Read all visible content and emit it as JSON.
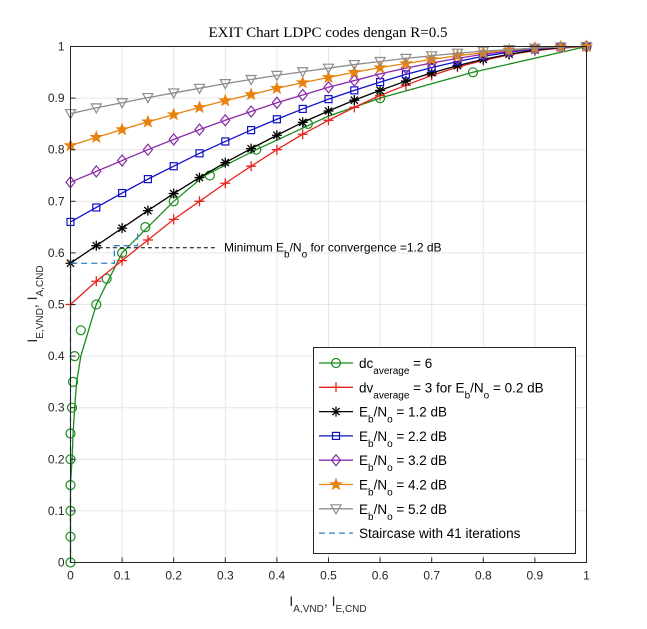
{
  "chart_data": {
    "type": "line",
    "title": "EXIT Chart LDPC codes dengan R=0.5",
    "xlabel_main": "I",
    "xlabel_sub": "A,VND",
    "xlabel_sep": ", I",
    "xlabel_sub2": "E,CND",
    "ylabel_main": "I",
    "ylabel_sub": "E,VND",
    "ylabel_sep": ", I",
    "ylabel_sub2": "A,CND",
    "xlim": [
      0,
      1
    ],
    "ylim": [
      0,
      1
    ],
    "xticks": [
      "0",
      "0.1",
      "0.2",
      "0.3",
      "0.4",
      "0.5",
      "0.6",
      "0.7",
      "0.8",
      "0.9",
      "1"
    ],
    "yticks": [
      "0",
      "0.1",
      "0.2",
      "0.3",
      "0.4",
      "0.5",
      "0.6",
      "0.7",
      "0.8",
      "0.9",
      "1"
    ],
    "grid": true,
    "legend_position": "bottom-right",
    "annotation": {
      "text_pre": "Minimum E",
      "text_sub1": "b",
      "text_mid": "/N",
      "text_sub2": "o",
      "text_post": " for convergence =1.2 dB",
      "point": [
        0.055,
        0.61
      ]
    },
    "series": [
      {
        "name": "dc",
        "name_sub": "average",
        "name_post": " = 6",
        "color": "#1a8c1a",
        "marker": "circle",
        "points": [
          [
            1.0,
            0.0
          ],
          [
            0.9,
            0.0
          ],
          [
            0.85,
            0.0
          ],
          [
            0.8,
            0.003
          ],
          [
            0.75,
            0.005
          ],
          [
            0.7,
            0.008
          ],
          [
            0.65,
            0.012
          ],
          [
            0.6,
            0.02
          ],
          [
            0.55,
            0.035
          ],
          [
            0.5,
            0.05
          ],
          [
            0.45,
            0.075
          ],
          [
            0.4,
            0.1
          ],
          [
            0.35,
            0.125
          ],
          [
            0.3,
            0.15
          ],
          [
            0.25,
            0.2
          ],
          [
            0.2,
            0.25
          ],
          [
            0.15,
            0.3
          ],
          [
            0.1,
            0.35
          ],
          [
            0.05,
            0.46
          ],
          [
            0.0,
            0.78
          ]
        ],
        "yx": true,
        "ext_points": [
          [
            0.36,
            0.8
          ],
          [
            0.5,
            0.865
          ],
          [
            0.6,
            0.9
          ],
          [
            0.78,
            0.95
          ],
          [
            1.0,
            1.0
          ]
        ],
        "markers_y": [
          0.0,
          0.05,
          0.1,
          0.15,
          0.2,
          0.25,
          0.3,
          0.35,
          0.4,
          0.45,
          0.5,
          0.55,
          0.6,
          0.65,
          0.7,
          0.75,
          0.8,
          0.85,
          0.9,
          0.95,
          1.0
        ]
      },
      {
        "name": "dv",
        "name_sub": "average",
        "name_post": " = 3 for E",
        "name_sub2": "b",
        "name_post2": "/N",
        "name_sub3": "o",
        "name_post3": " = 0.2 dB",
        "color": "#e8231e",
        "marker": "plus",
        "x": [
          0,
          0.05,
          0.1,
          0.15,
          0.2,
          0.25,
          0.3,
          0.35,
          0.4,
          0.45,
          0.5,
          0.55,
          0.6,
          0.65,
          0.7,
          0.75,
          0.8,
          0.85,
          0.9,
          0.95,
          1.0
        ],
        "y": [
          0.5,
          0.545,
          0.585,
          0.625,
          0.665,
          0.7,
          0.735,
          0.768,
          0.8,
          0.83,
          0.857,
          0.882,
          0.905,
          0.925,
          0.944,
          0.96,
          0.973,
          0.984,
          0.992,
          0.997,
          1.0
        ]
      },
      {
        "name": "E",
        "name_sub": "b",
        "name_post": "/N",
        "name_sub2": "o",
        "name_post2": " = 1.2 dB",
        "color": "#000000",
        "marker": "star",
        "x": [
          0,
          0.05,
          0.1,
          0.15,
          0.2,
          0.25,
          0.3,
          0.35,
          0.4,
          0.45,
          0.5,
          0.55,
          0.6,
          0.65,
          0.7,
          0.75,
          0.8,
          0.85,
          0.9,
          0.95,
          1.0
        ],
        "y": [
          0.58,
          0.614,
          0.648,
          0.682,
          0.715,
          0.746,
          0.775,
          0.802,
          0.828,
          0.853,
          0.875,
          0.896,
          0.915,
          0.933,
          0.949,
          0.963,
          0.975,
          0.985,
          0.993,
          0.998,
          1.0
        ]
      },
      {
        "name": "E",
        "name_sub": "b",
        "name_post": "/N",
        "name_sub2": "o",
        "name_post2": " = 2.2 dB",
        "color": "#1010c8",
        "marker": "square",
        "x": [
          0,
          0.05,
          0.1,
          0.15,
          0.2,
          0.25,
          0.3,
          0.35,
          0.4,
          0.45,
          0.5,
          0.55,
          0.6,
          0.65,
          0.7,
          0.75,
          0.8,
          0.85,
          0.9,
          0.95,
          1.0
        ],
        "y": [
          0.66,
          0.688,
          0.716,
          0.743,
          0.768,
          0.793,
          0.816,
          0.838,
          0.859,
          0.879,
          0.898,
          0.915,
          0.931,
          0.946,
          0.959,
          0.971,
          0.981,
          0.989,
          0.995,
          0.999,
          1.0
        ]
      },
      {
        "name": "E",
        "name_sub": "b",
        "name_post": "/N",
        "name_sub2": "o",
        "name_post2": " = 3.2 dB",
        "color": "#8a2aa8",
        "marker": "diamond",
        "x": [
          0,
          0.05,
          0.1,
          0.15,
          0.2,
          0.25,
          0.3,
          0.35,
          0.4,
          0.45,
          0.5,
          0.55,
          0.6,
          0.65,
          0.7,
          0.75,
          0.8,
          0.85,
          0.9,
          0.95,
          1.0
        ],
        "y": [
          0.737,
          0.758,
          0.779,
          0.8,
          0.82,
          0.839,
          0.857,
          0.874,
          0.891,
          0.906,
          0.921,
          0.934,
          0.947,
          0.958,
          0.968,
          0.977,
          0.985,
          0.991,
          0.996,
          0.999,
          1.0
        ]
      },
      {
        "name": "E",
        "name_sub": "b",
        "name_post": "/N",
        "name_sub2": "o",
        "name_post2": " = 4.2 dB",
        "color": "#e8820e",
        "marker": "pentagram",
        "x": [
          0,
          0.05,
          0.1,
          0.15,
          0.2,
          0.25,
          0.3,
          0.35,
          0.4,
          0.45,
          0.5,
          0.55,
          0.6,
          0.65,
          0.7,
          0.75,
          0.8,
          0.85,
          0.9,
          0.95,
          1.0
        ],
        "y": [
          0.808,
          0.824,
          0.839,
          0.854,
          0.868,
          0.882,
          0.895,
          0.907,
          0.919,
          0.93,
          0.94,
          0.95,
          0.959,
          0.967,
          0.975,
          0.982,
          0.988,
          0.993,
          0.997,
          0.999,
          1.0
        ]
      },
      {
        "name": "E",
        "name_sub": "b",
        "name_post": "/N",
        "name_sub2": "o",
        "name_post2": " = 5.2 dB",
        "color": "#8c8c8c",
        "marker": "triangle-down",
        "x": [
          0,
          0.05,
          0.1,
          0.15,
          0.2,
          0.25,
          0.3,
          0.35,
          0.4,
          0.45,
          0.5,
          0.55,
          0.6,
          0.65,
          0.7,
          0.75,
          0.8,
          0.85,
          0.9,
          0.95,
          1.0
        ],
        "y": [
          0.87,
          0.881,
          0.891,
          0.901,
          0.91,
          0.919,
          0.928,
          0.936,
          0.944,
          0.951,
          0.958,
          0.965,
          0.971,
          0.977,
          0.982,
          0.987,
          0.991,
          0.994,
          0.997,
          0.999,
          1.0
        ]
      },
      {
        "name": "Staircase with 41 iterations",
        "color": "#2f7fc1",
        "marker": "none",
        "dashed": true,
        "x": [
          0,
          0,
          0.085,
          0.085,
          0.13,
          0.13
        ],
        "y": [
          0,
          0.58,
          0.58,
          0.614,
          0.614,
          0.64
        ]
      }
    ]
  }
}
